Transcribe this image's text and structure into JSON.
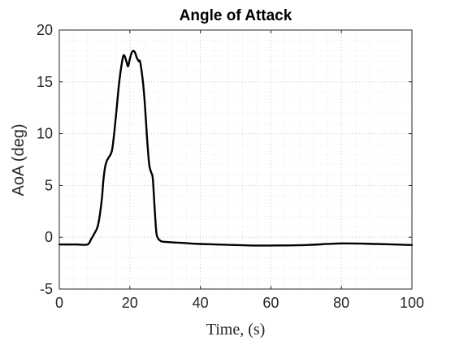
{
  "chart_data": {
    "type": "line",
    "title": "Angle of Attack",
    "xlabel": "Time, (s)",
    "ylabel": "AoA (deg)",
    "xlim": [
      0,
      100
    ],
    "ylim": [
      -5,
      20
    ],
    "xticks": [
      0,
      20,
      40,
      60,
      80,
      100
    ],
    "yticks": [
      -5,
      0,
      5,
      10,
      15,
      20
    ],
    "grid": true,
    "minor_grid": true,
    "line_color": "#000000",
    "series": [
      {
        "x": [
          0,
          5,
          8,
          9,
          10,
          11,
          12,
          12.5,
          13,
          13.5,
          14,
          15,
          16,
          17,
          18,
          18.5,
          19,
          19.5,
          20,
          20.5,
          21,
          21.5,
          22,
          22.5,
          23,
          24,
          25,
          25.5,
          26,
          26.5,
          27,
          27.5,
          28,
          28.5,
          29,
          30,
          35,
          40,
          50,
          55,
          60,
          70,
          80,
          90,
          100
        ],
        "y": [
          -0.7,
          -0.7,
          -0.7,
          -0.2,
          0.4,
          1.2,
          3.5,
          5.5,
          6.8,
          7.4,
          7.7,
          8.5,
          11.5,
          15.0,
          17.3,
          17.5,
          17.0,
          16.5,
          17.2,
          17.8,
          18.0,
          17.8,
          17.3,
          17.0,
          16.8,
          14.0,
          9.0,
          7.0,
          6.3,
          5.7,
          3.0,
          0.5,
          -0.1,
          -0.3,
          -0.4,
          -0.45,
          -0.55,
          -0.65,
          -0.75,
          -0.8,
          -0.8,
          -0.75,
          -0.6,
          -0.65,
          -0.75
        ]
      }
    ]
  }
}
